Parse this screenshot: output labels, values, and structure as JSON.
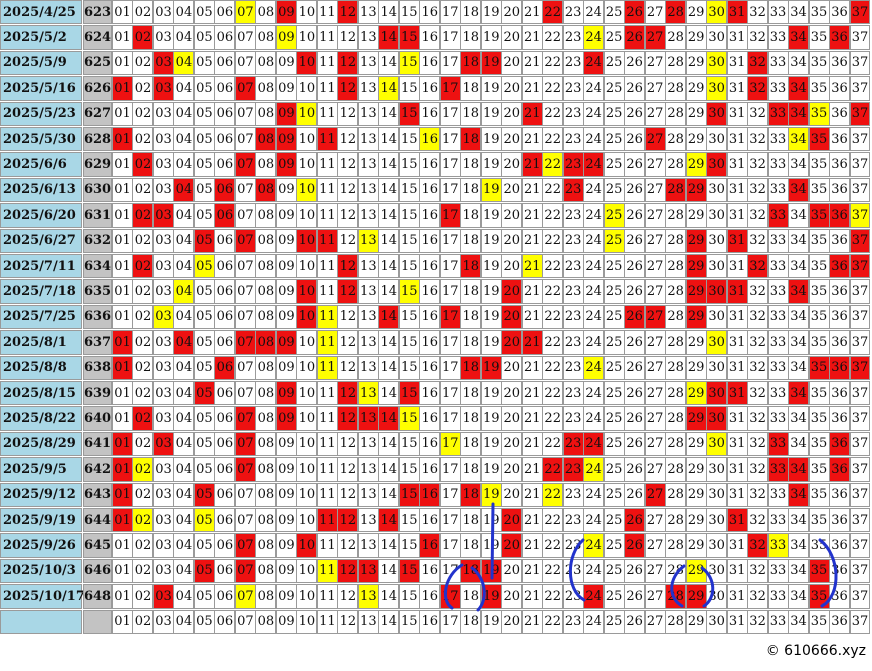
{
  "numbers": [
    "01",
    "02",
    "03",
    "04",
    "05",
    "06",
    "07",
    "08",
    "09",
    "10",
    "11",
    "12",
    "13",
    "14",
    "15",
    "16",
    "17",
    "18",
    "19",
    "20",
    "21",
    "22",
    "23",
    "24",
    "25",
    "26",
    "27",
    "28",
    "29",
    "30",
    "31",
    "32",
    "33",
    "34",
    "35",
    "36",
    "37"
  ],
  "rows": [
    {
      "date": "2025/4/25",
      "issue": "623",
      "red": [
        "09",
        "12",
        "22",
        "26",
        "28",
        "31",
        "37"
      ],
      "yellow": [
        "07",
        "30"
      ]
    },
    {
      "date": "2025/5/2",
      "issue": "624",
      "red": [
        "02",
        "14",
        "15",
        "26",
        "27",
        "34",
        "36"
      ],
      "yellow": [
        "09",
        "24"
      ]
    },
    {
      "date": "2025/5/9",
      "issue": "625",
      "red": [
        "03",
        "10",
        "12",
        "18",
        "19",
        "24",
        "32"
      ],
      "yellow": [
        "04",
        "15",
        "30"
      ]
    },
    {
      "date": "2025/5/16",
      "issue": "626",
      "red": [
        "01",
        "03",
        "07",
        "12",
        "17",
        "32",
        "34"
      ],
      "yellow": [
        "14",
        "30"
      ]
    },
    {
      "date": "2025/5/23",
      "issue": "627",
      "red": [
        "09",
        "15",
        "21",
        "30",
        "33",
        "34",
        "37"
      ],
      "yellow": [
        "10",
        "35"
      ]
    },
    {
      "date": "2025/5/30",
      "issue": "628",
      "red": [
        "01",
        "08",
        "09",
        "11",
        "18",
        "27",
        "35"
      ],
      "yellow": [
        "16",
        "34"
      ]
    },
    {
      "date": "2025/6/6",
      "issue": "629",
      "red": [
        "02",
        "07",
        "09",
        "21",
        "23",
        "24",
        "30"
      ],
      "yellow": [
        "22",
        "29"
      ]
    },
    {
      "date": "2025/6/13",
      "issue": "630",
      "red": [
        "04",
        "06",
        "08",
        "23",
        "28",
        "29",
        "34"
      ],
      "yellow": [
        "10",
        "19"
      ]
    },
    {
      "date": "2025/6/20",
      "issue": "631",
      "red": [
        "02",
        "03",
        "06",
        "17",
        "33",
        "35",
        "36"
      ],
      "yellow": [
        "25",
        "37"
      ]
    },
    {
      "date": "2025/6/27",
      "issue": "632",
      "red": [
        "05",
        "07",
        "10",
        "11",
        "29",
        "31",
        "37"
      ],
      "yellow": [
        "13",
        "25"
      ]
    },
    {
      "date": "2025/7/11",
      "issue": "634",
      "red": [
        "02",
        "12",
        "18",
        "29",
        "32",
        "36",
        "37"
      ],
      "yellow": [
        "05",
        "21"
      ]
    },
    {
      "date": "2025/7/18",
      "issue": "635",
      "red": [
        "10",
        "12",
        "20",
        "29",
        "30",
        "31",
        "34"
      ],
      "yellow": [
        "04",
        "15"
      ]
    },
    {
      "date": "2025/7/25",
      "issue": "636",
      "red": [
        "10",
        "14",
        "17",
        "20",
        "26",
        "27",
        "29"
      ],
      "yellow": [
        "03",
        "11"
      ]
    },
    {
      "date": "2025/8/1",
      "issue": "637",
      "red": [
        "01",
        "04",
        "07",
        "08",
        "09",
        "20",
        "21"
      ],
      "yellow": [
        "11",
        "30"
      ]
    },
    {
      "date": "2025/8/8",
      "issue": "638",
      "red": [
        "01",
        "06",
        "18",
        "19",
        "35",
        "36",
        "37"
      ],
      "yellow": [
        "11",
        "24"
      ]
    },
    {
      "date": "2025/8/15",
      "issue": "639",
      "red": [
        "05",
        "09",
        "12",
        "15",
        "30",
        "31",
        "34"
      ],
      "yellow": [
        "13",
        "29"
      ]
    },
    {
      "date": "2025/8/22",
      "issue": "640",
      "red": [
        "02",
        "07",
        "09",
        "12",
        "13",
        "14",
        "29",
        "30"
      ],
      "yellow": [
        "15"
      ]
    },
    {
      "date": "2025/8/29",
      "issue": "641",
      "red": [
        "01",
        "03",
        "07",
        "23",
        "24",
        "33",
        "36"
      ],
      "yellow": [
        "17",
        "30"
      ]
    },
    {
      "date": "2025/9/5",
      "issue": "642",
      "red": [
        "01",
        "07",
        "22",
        "23",
        "33",
        "34",
        "36"
      ],
      "yellow": [
        "02",
        "24"
      ]
    },
    {
      "date": "2025/9/12",
      "issue": "643",
      "red": [
        "01",
        "05",
        "15",
        "16",
        "18",
        "27",
        "34"
      ],
      "yellow": [
        "19",
        "22"
      ]
    },
    {
      "date": "2025/9/19",
      "issue": "644",
      "red": [
        "01",
        "11",
        "12",
        "14",
        "20",
        "26",
        "31"
      ],
      "yellow": [
        "02",
        "05"
      ]
    },
    {
      "date": "2025/9/26",
      "issue": "645",
      "red": [
        "07",
        "10",
        "16",
        "20",
        "26",
        "32"
      ],
      "yellow": [
        "24",
        "33"
      ]
    },
    {
      "date": "2025/10/3",
      "issue": "646",
      "red": [
        "05",
        "07",
        "12",
        "13",
        "15",
        "18",
        "19",
        "35"
      ],
      "yellow": [
        "11",
        "29"
      ]
    },
    {
      "date": "2025/10/17",
      "issue": "648",
      "red": [
        "03",
        "17",
        "19",
        "24",
        "28",
        "29",
        "35"
      ],
      "yellow": [
        "07",
        "13"
      ]
    }
  ],
  "footer": "© 610666.xyz"
}
